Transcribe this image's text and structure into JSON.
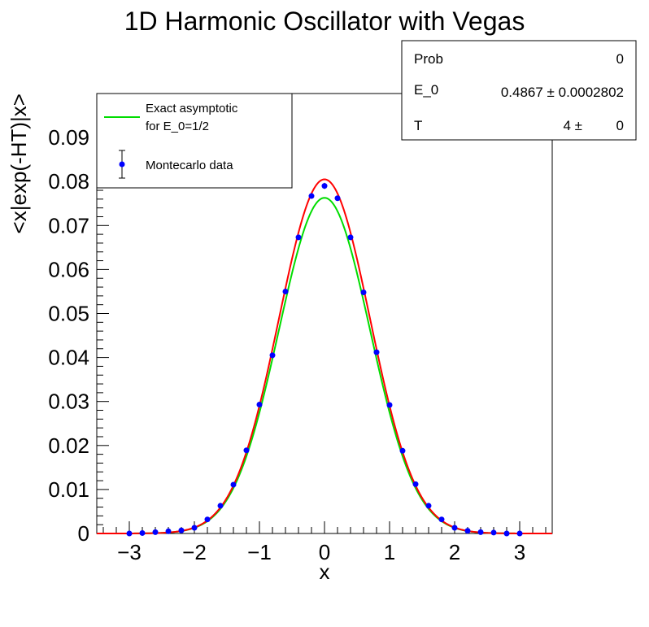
{
  "chart_data": {
    "type": "scatter",
    "title": "1D Harmonic Oscillator with Vegas",
    "xlabel": "x",
    "ylabel": "<x|exp(-HT)|x>",
    "xlim": [
      -3.5,
      3.5
    ],
    "ylim": [
      0,
      0.1
    ],
    "x_ticks": [
      -3,
      -2,
      -1,
      0,
      1,
      2,
      3
    ],
    "x_tick_labels": [
      "−3",
      "−2",
      "−1",
      "0",
      "1",
      "2",
      "3"
    ],
    "y_ticks": [
      0,
      0.01,
      0.02,
      0.03,
      0.04,
      0.05,
      0.06,
      0.07,
      0.08,
      0.09
    ],
    "y_tick_labels": [
      "0",
      "0.01",
      "0.02",
      "0.03",
      "0.04",
      "0.05",
      "0.06",
      "0.07",
      "0.08",
      "0.09"
    ],
    "grid": false,
    "legend_position": "top-left",
    "legend": {
      "exact_label_line1": "Exact asymptotic",
      "exact_label_line2": "for E_0=1/2",
      "data_label": "Montecarlo data"
    },
    "stats": {
      "prob_label": "Prob",
      "prob_value": "0",
      "e0_label": "E_0",
      "e0_value": "0.4867",
      "e0_error": "0.0002802",
      "t_label": "T",
      "t_value": "4",
      "t_error": "0",
      "pm": "±"
    },
    "series": [
      {
        "name": "Montecarlo data",
        "kind": "points",
        "color": "#0000ff",
        "x": [
          -3.0,
          -2.8,
          -2.6,
          -2.4,
          -2.2,
          -2.0,
          -1.8,
          -1.6,
          -1.4,
          -1.2,
          -1.0,
          -0.8,
          -0.6,
          -0.4,
          -0.2,
          0.0,
          0.2,
          0.4,
          0.6,
          0.8,
          1.0,
          1.2,
          1.4,
          1.6,
          1.8,
          2.0,
          2.2,
          2.4,
          2.6,
          2.8,
          3.0
        ],
        "y": [
          0.0,
          0.0001,
          0.0003,
          0.0005,
          0.0007,
          0.0013,
          0.0032,
          0.0063,
          0.0111,
          0.0189,
          0.0293,
          0.0405,
          0.055,
          0.0673,
          0.0767,
          0.079,
          0.0762,
          0.0673,
          0.0548,
          0.0412,
          0.0292,
          0.0188,
          0.0112,
          0.0063,
          0.0032,
          0.0013,
          0.0006,
          0.0003,
          0.0002,
          0.0,
          0.0
        ],
        "err": [
          0.0002,
          0.0002,
          0.0002,
          0.0002,
          0.0002,
          0.0003,
          0.0003,
          0.0003,
          0.0004,
          0.0004,
          0.0005,
          0.0005,
          0.0005,
          0.0006,
          0.0006,
          0.0007,
          0.0006,
          0.0006,
          0.0005,
          0.0005,
          0.0005,
          0.0004,
          0.0004,
          0.0003,
          0.0003,
          0.0003,
          0.0002,
          0.0002,
          0.0002,
          0.0002,
          0.0002
        ]
      },
      {
        "name": "fit",
        "kind": "curve",
        "color": "#ff0000",
        "amplitude": 0.0805,
        "sigma": 0.7
      },
      {
        "name": "Exact asymptotic for E_0=1/2",
        "kind": "curve",
        "color": "#00dd00",
        "amplitude": 0.0763,
        "sigma": 0.7
      }
    ]
  }
}
